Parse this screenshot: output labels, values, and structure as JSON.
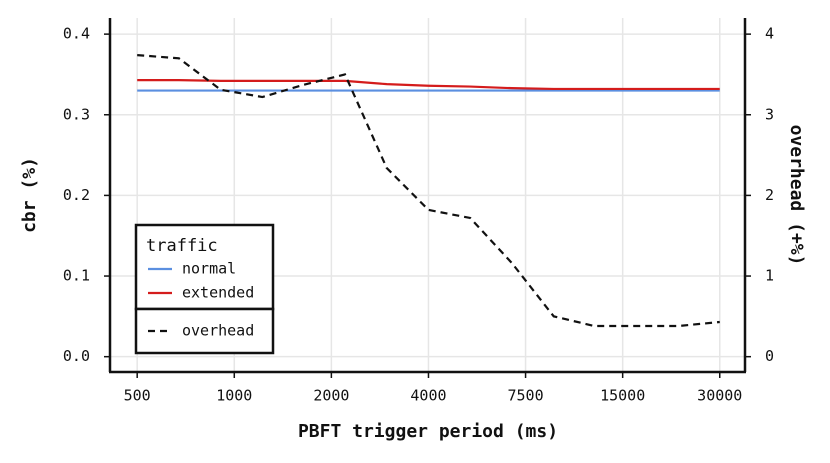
{
  "chart_data": {
    "type": "line",
    "xlabel": "PBFT trigger period (ms)",
    "ylabel": "cbr (%)",
    "y2label": "overhead (+%)",
    "xlim": [
      -0.28,
      6.26
    ],
    "xticks": [
      {
        "value": 0,
        "label": "500"
      },
      {
        "value": 1,
        "label": "1000"
      },
      {
        "value": 2,
        "label": "2000"
      },
      {
        "value": 3,
        "label": "4000"
      },
      {
        "value": 4,
        "label": "7500"
      },
      {
        "value": 5,
        "label": "15000"
      },
      {
        "value": 6,
        "label": "30000"
      }
    ],
    "ylim": [
      -0.019,
      0.42
    ],
    "yticks": [
      {
        "value": 0,
        "label": "0.0"
      },
      {
        "value": 0.1,
        "label": "0.1"
      },
      {
        "value": 0.2,
        "label": "0.2"
      },
      {
        "value": 0.3,
        "label": "0.3"
      },
      {
        "value": 0.4,
        "label": "0.4"
      }
    ],
    "y2lim": [
      -0.19,
      4.2
    ],
    "y2ticks": [
      0,
      1,
      2,
      3,
      4
    ],
    "grid": true,
    "legend": {
      "title": "traffic",
      "position": "bottom-left"
    },
    "x": [
      0,
      0.43,
      0.86,
      1.29,
      1.71,
      2.14,
      2.57,
      3,
      3.43,
      3.86,
      4.29,
      4.71,
      5.14,
      5.57,
      6
    ],
    "series": [
      {
        "name": "normal",
        "color": "#5b8fe0",
        "dash": false,
        "values": [
          0.33,
          0.33,
          0.33,
          0.33,
          0.33,
          0.33,
          0.33,
          0.33,
          0.33,
          0.33,
          0.33,
          0.33,
          0.33,
          0.33,
          0.33
        ]
      },
      {
        "name": "extended",
        "color": "#d41c1c",
        "dash": false,
        "values": [
          0.343,
          0.343,
          0.342,
          0.342,
          0.342,
          0.342,
          0.338,
          0.336,
          0.335,
          0.333,
          0.332,
          0.332,
          0.332,
          0.332,
          0.332
        ]
      },
      {
        "name": "overhead",
        "color": "#111111",
        "dash": true,
        "axis": "y2",
        "values": [
          3.74,
          3.7,
          3.31,
          3.22,
          3.37,
          3.5,
          2.34,
          1.82,
          1.72,
          1.16,
          0.5,
          0.38,
          0.38,
          0.38,
          0.43
        ]
      }
    ]
  }
}
